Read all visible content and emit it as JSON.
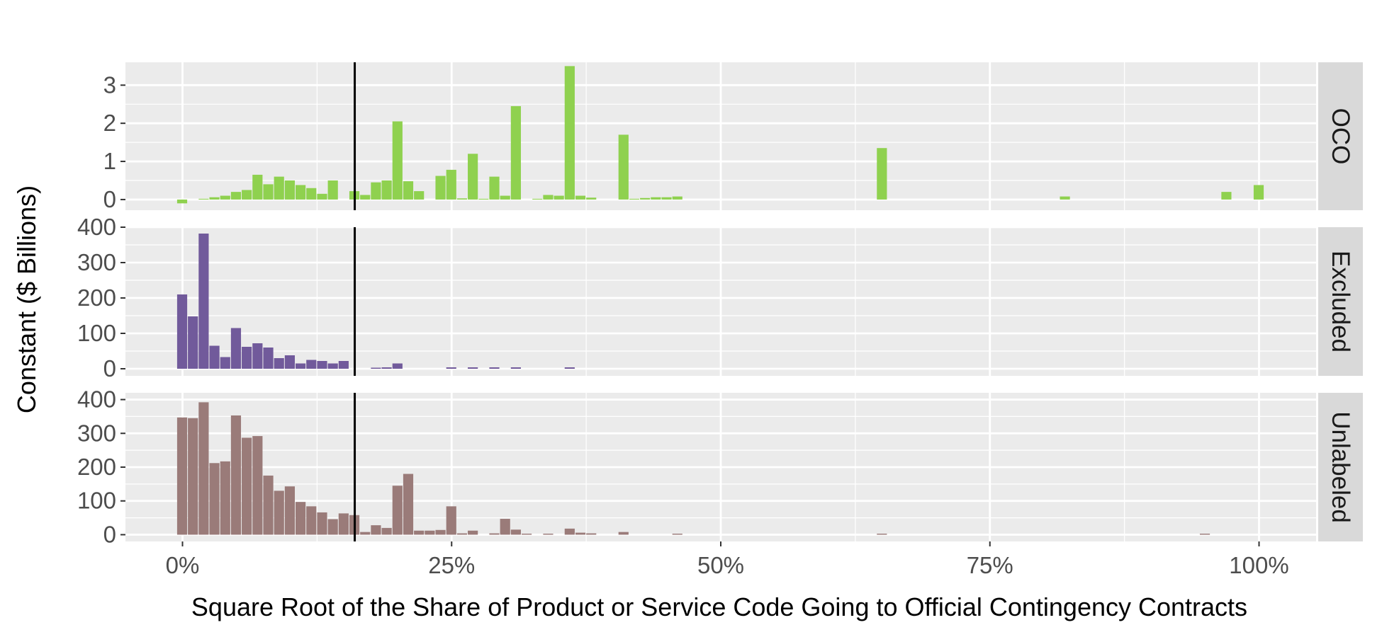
{
  "chart_data": {
    "type": "bar",
    "title": "",
    "xlabel": "Square Root of the Share of Product or Service Code Going to Official Contingency Contracts",
    "ylabel": "Constant ($ Billions)",
    "x_ticks": [
      "0%",
      "25%",
      "50%",
      "75%",
      "100%"
    ],
    "x_tick_values": [
      0,
      25,
      50,
      75,
      100
    ],
    "xlim": [
      -5.3,
      105.3
    ],
    "vline_x": 16,
    "bin_width": 1,
    "grid": true,
    "facets": [
      {
        "label": "OCO",
        "color": "#8fd14f",
        "ylim": [
          -0.28,
          3.6
        ],
        "y_ticks": [
          0,
          1,
          2,
          3
        ],
        "x": [
          0,
          2,
          3,
          4,
          5,
          6,
          7,
          8,
          9,
          10,
          11,
          12,
          13,
          14,
          16,
          17,
          18,
          19,
          20,
          21,
          22,
          24,
          25,
          26,
          27,
          28,
          29,
          30,
          31,
          33,
          34,
          35,
          36,
          37,
          38,
          41,
          42,
          43,
          44,
          45,
          46,
          65,
          82,
          97,
          100
        ],
        "values": [
          -0.1,
          0.02,
          0.06,
          0.1,
          0.2,
          0.25,
          0.65,
          0.4,
          0.6,
          0.5,
          0.38,
          0.3,
          0.15,
          0.5,
          0.22,
          0.12,
          0.45,
          0.5,
          2.05,
          0.48,
          0.22,
          0.62,
          0.78,
          0.03,
          1.2,
          0.02,
          0.6,
          0.1,
          2.45,
          0.02,
          0.12,
          0.1,
          3.5,
          0.1,
          0.05,
          1.7,
          0.02,
          0.04,
          0.06,
          0.06,
          0.08,
          1.35,
          0.08,
          0.2,
          0.38
        ]
      },
      {
        "label": "Excluded",
        "color": "#715a9b",
        "ylim": [
          -20,
          400
        ],
        "y_ticks": [
          0,
          100,
          200,
          300,
          400
        ],
        "x": [
          0,
          1,
          2,
          3,
          4,
          5,
          6,
          7,
          8,
          9,
          10,
          11,
          12,
          13,
          14,
          15,
          18,
          19,
          20,
          25,
          27,
          29,
          31,
          36
        ],
        "values": [
          210,
          148,
          382,
          65,
          33,
          115,
          62,
          72,
          60,
          30,
          38,
          15,
          25,
          22,
          15,
          22,
          3,
          4,
          15,
          4,
          4,
          4,
          4,
          4
        ]
      },
      {
        "label": "Unlabeled",
        "color": "#9a7b79",
        "ylim": [
          -20,
          420
        ],
        "y_ticks": [
          0,
          100,
          200,
          300,
          400
        ],
        "x": [
          0,
          1,
          2,
          3,
          4,
          5,
          6,
          7,
          8,
          9,
          10,
          11,
          12,
          13,
          14,
          15,
          16,
          17,
          18,
          19,
          20,
          21,
          22,
          23,
          24,
          25,
          26,
          27,
          29,
          30,
          31,
          32,
          34,
          36,
          37,
          38,
          41,
          46,
          65,
          95
        ],
        "values": [
          347,
          345,
          392,
          212,
          217,
          353,
          287,
          292,
          175,
          130,
          143,
          97,
          84,
          66,
          46,
          63,
          58,
          8,
          28,
          20,
          145,
          180,
          12,
          12,
          14,
          84,
          4,
          12,
          4,
          47,
          15,
          3,
          3,
          18,
          6,
          4,
          8,
          3,
          3,
          3
        ]
      }
    ]
  }
}
